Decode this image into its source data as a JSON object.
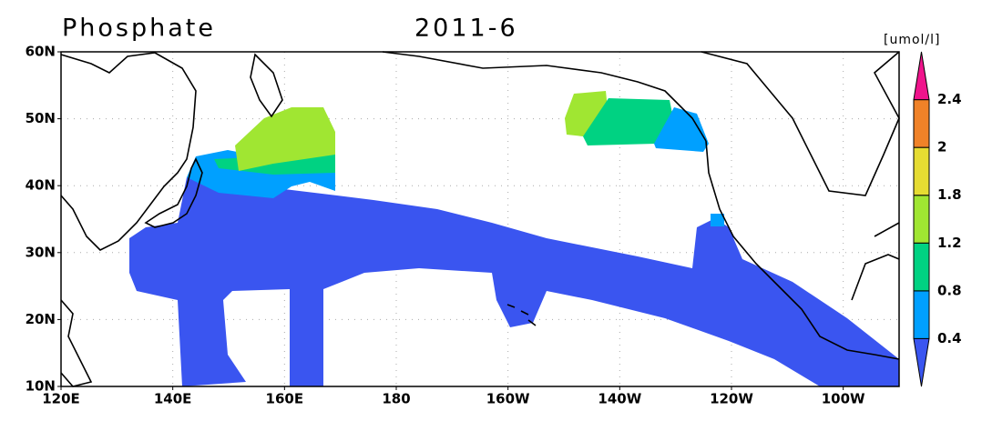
{
  "title": "Phosphate",
  "period": "2011-6",
  "unit": "[umol/l]",
  "x_labels": [
    "120E",
    "140E",
    "160E",
    "180",
    "160W",
    "140W",
    "120W",
    "100W"
  ],
  "y_labels": [
    "10N",
    "20N",
    "30N",
    "40N",
    "50N",
    "60N"
  ],
  "colorbar": {
    "levels": [
      0.4,
      0.8,
      1.2,
      1.8,
      2,
      2.4
    ],
    "colors": [
      "#3a55f0",
      "#00a0ff",
      "#00d282",
      "#a0e632",
      "#e6dc32",
      "#f08228",
      "#f0148c"
    ]
  }
}
